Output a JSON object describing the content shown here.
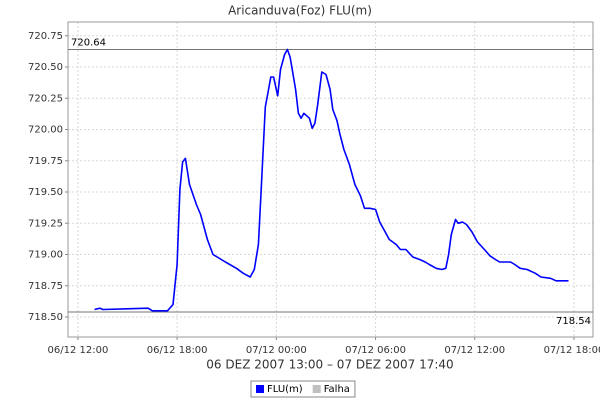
{
  "chart_data": {
    "type": "line",
    "title": "Aricanduva(Foz) FLU(m)",
    "xlabel": "06 DEZ 2007 13:00 – 07 DEZ 2007 17:40",
    "x": [
      "06/12 13:00",
      "06/12 13:20",
      "06/12 13:30",
      "06/12 16:15",
      "06/12 16:30",
      "06/12 17:25",
      "06/12 17:45",
      "06/12 18:00",
      "06/12 18:10",
      "06/12 18:20",
      "06/12 18:30",
      "06/12 18:45",
      "06/12 19:10",
      "06/12 19:25",
      "06/12 19:50",
      "06/12 20:10",
      "06/12 20:55",
      "06/12 21:35",
      "06/12 22:00",
      "06/12 22:25",
      "06/12 22:40",
      "06/12 22:55",
      "06/12 23:05",
      "06/12 23:20",
      "06/12 23:30",
      "06/12 23:40",
      "06/12 23:50",
      "07/12 00:05",
      "07/12 00:15",
      "07/12 00:30",
      "07/12 00:40",
      "07/12 00:50",
      "07/12 01:10",
      "07/12 01:20",
      "07/12 01:30",
      "07/12 01:40",
      "07/12 02:00",
      "07/12 02:10",
      "07/12 02:20",
      "07/12 02:30",
      "07/12 02:45",
      "07/12 03:00",
      "07/12 03:15",
      "07/12 03:25",
      "07/12 03:40",
      "07/12 03:50",
      "07/12 04:05",
      "07/12 04:25",
      "07/12 04:45",
      "07/12 05:05",
      "07/12 05:20",
      "07/12 05:40",
      "07/12 06:00",
      "07/12 06:15",
      "07/12 06:35",
      "07/12 06:50",
      "07/12 07:15",
      "07/12 07:30",
      "07/12 07:50",
      "07/12 08:15",
      "07/12 08:40",
      "07/12 09:00",
      "07/12 09:15",
      "07/12 09:40",
      "07/12 10:00",
      "07/12 10:15",
      "07/12 10:25",
      "07/12 10:35",
      "07/12 10:50",
      "07/12 11:00",
      "07/12 11:15",
      "07/12 11:30",
      "07/12 11:50",
      "07/12 12:10",
      "07/12 12:35",
      "07/12 12:55",
      "07/12 13:15",
      "07/12 13:30",
      "07/12 14:10",
      "07/12 14:25",
      "07/12 14:45",
      "07/12 15:10",
      "07/12 15:40",
      "07/12 16:00",
      "07/12 16:35",
      "07/12 16:55",
      "07/12 17:40"
    ],
    "series": [
      {
        "name": "FLU(m)",
        "color": "#0000ff",
        "values": [
          718.56,
          718.57,
          718.56,
          718.57,
          718.55,
          718.55,
          718.6,
          718.92,
          719.52,
          719.74,
          719.77,
          719.56,
          719.4,
          719.32,
          719.12,
          719.0,
          718.94,
          718.89,
          718.85,
          718.82,
          718.88,
          719.08,
          719.52,
          720.18,
          720.3,
          720.42,
          720.42,
          720.27,
          720.48,
          720.6,
          720.64,
          720.58,
          720.32,
          720.13,
          720.09,
          720.13,
          720.09,
          720.01,
          720.05,
          720.2,
          720.46,
          720.44,
          720.32,
          720.16,
          720.07,
          719.97,
          719.84,
          719.72,
          719.56,
          719.47,
          719.37,
          719.37,
          719.36,
          719.26,
          719.18,
          719.12,
          719.08,
          719.04,
          719.04,
          718.98,
          718.96,
          718.94,
          718.92,
          718.89,
          718.88,
          718.89,
          719.0,
          719.16,
          719.28,
          719.25,
          719.26,
          719.24,
          719.18,
          719.1,
          719.04,
          718.99,
          718.96,
          718.94,
          718.94,
          718.92,
          718.89,
          718.88,
          718.85,
          718.82,
          718.81,
          718.79,
          718.79
        ]
      }
    ],
    "extra_legend": [
      {
        "name": "Falha",
        "color": "#c0c0c0"
      }
    ],
    "reference_lines": [
      720.64,
      718.54
    ],
    "xlim": [
      "06/12 11:24",
      "07/12 19:09"
    ],
    "xticks": [
      "06/12 12:00",
      "06/12 18:00",
      "07/12 00:00",
      "07/12 06:00",
      "07/12 12:00",
      "07/12 18:00"
    ],
    "ylim": [
      718.34,
      720.86
    ],
    "yticks": [
      720.75,
      {
        "value": 720.5,
        "label": "720.50"
      },
      720.25,
      {
        "value": 720,
        "label": "720.00"
      },
      719.75,
      {
        "value": 719.5,
        "label": "719.50"
      },
      719.25,
      {
        "value": 719,
        "label": "719.00"
      },
      718.75,
      {
        "value": 718.5,
        "label": "718.50"
      }
    ],
    "grid": true
  }
}
